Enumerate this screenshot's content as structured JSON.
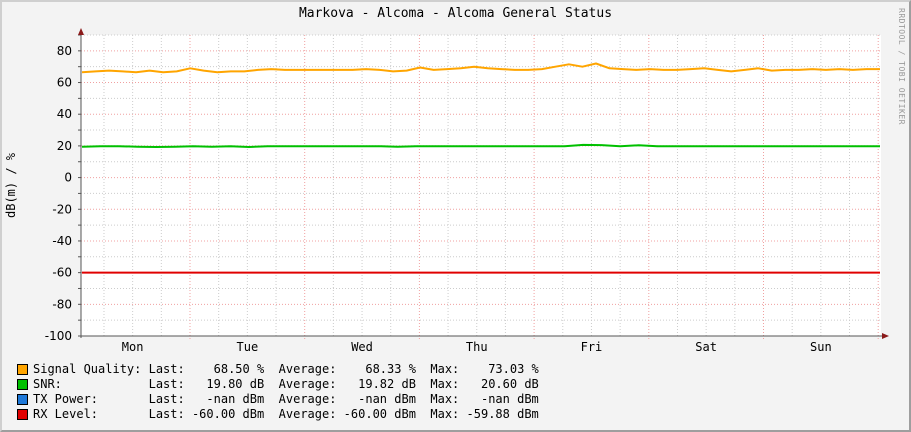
{
  "title": "Markova - Alcoma - Alcoma General Status",
  "watermark": "RRDTOOL / TOBI OETIKER",
  "chart_data": {
    "type": "line",
    "title": "Markova - Alcoma - Alcoma General Status",
    "xlabel": "",
    "ylabel": "dB(m) / %",
    "ylim": [
      -100,
      90
    ],
    "yticks": [
      80,
      60,
      40,
      20,
      0,
      -20,
      -40,
      -60,
      -80,
      -100
    ],
    "ytick_labels": [
      "80",
      "60",
      "40",
      "20",
      "0",
      "-20",
      "-40",
      "-60",
      "-80",
      "-100"
    ],
    "categories": [
      "Mon",
      "Tue",
      "Wed",
      "Thu",
      "Fri",
      "Sat",
      "Sun"
    ],
    "grid": true,
    "legend_position": "bottom",
    "series": [
      {
        "name": "Signal Quality",
        "unit": "%",
        "color": "#FFA500",
        "values": [
          66.5,
          67,
          67.5,
          67,
          66.5,
          67.5,
          66.5,
          67,
          69,
          67.5,
          66.5,
          67,
          67,
          68,
          68.5,
          68,
          68,
          68,
          68,
          68,
          68,
          68.5,
          68,
          67,
          67.5,
          69.5,
          68,
          68.5,
          69,
          70,
          69,
          68.5,
          68,
          68,
          68.5,
          70,
          71.5,
          70,
          72,
          69,
          68.5,
          68,
          68.5,
          68,
          68,
          68.5,
          69,
          68,
          67,
          68,
          69,
          67.5,
          68,
          68,
          68.5,
          68,
          68.5,
          68,
          68.5,
          68.5
        ],
        "last": "68.50 %",
        "average": "68.33 %",
        "max": "73.03 %"
      },
      {
        "name": "SNR",
        "unit": "dB",
        "color": "#00C000",
        "values": [
          19.5,
          19.8,
          19.8,
          19.5,
          19.3,
          19.5,
          19.8,
          19.5,
          19.8,
          19.3,
          19.8,
          19.8,
          19.8,
          19.8,
          19.8,
          19.8,
          19.8,
          19.5,
          19.8,
          19.8,
          19.8,
          19.8,
          19.8,
          19.8,
          19.8,
          19.8,
          19.8,
          20.6,
          20.5,
          19.8,
          20.4,
          19.8,
          19.8,
          19.8,
          19.8,
          19.8,
          19.8,
          19.8,
          19.8,
          19.8,
          19.8,
          19.8,
          19.8,
          19.8
        ],
        "last": "19.80 dB",
        "average": "19.82 dB",
        "max": "20.60 dB"
      },
      {
        "name": "TX Power",
        "unit": "dBm",
        "color": "#1E78D8",
        "values": [],
        "last": "-nan dBm",
        "average": "-nan dBm",
        "max": "-nan dBm"
      },
      {
        "name": "RX Level",
        "unit": "dBm",
        "color": "#E00000",
        "values": [
          -60,
          -60,
          -60,
          -60,
          -60,
          -60,
          -60,
          -60
        ],
        "last": "-60.00 dBm",
        "average": "-60.00 dBm",
        "max": "-59.88 dBm"
      }
    ]
  },
  "legend": [
    {
      "name": "Signal Quality:",
      "color": "#FFA500",
      "last_label": "Last:",
      "last": "68.50 %",
      "avg_label": "Average:",
      "avg": "68.33 %",
      "max_label": "Max:",
      "max": "73.03 %"
    },
    {
      "name": "SNR:",
      "color": "#00C000",
      "last_label": "Last:",
      "last": "19.80 dB",
      "avg_label": "Average:",
      "avg": "19.82 dB",
      "max_label": "Max:",
      "max": "20.60 dB"
    },
    {
      "name": "TX Power:",
      "color": "#1E78D8",
      "last_label": "Last:",
      "last": "-nan dBm",
      "avg_label": "Average:",
      "avg": "-nan dBm",
      "max_label": "Max:",
      "max": "-nan dBm"
    },
    {
      "name": "RX Level:",
      "color": "#E00000",
      "last_label": "Last:",
      "last": "-60.00 dBm",
      "avg_label": "Average:",
      "avg": "-60.00 dBm",
      "max_label": "Max:",
      "max": "-59.88 dBm"
    }
  ]
}
